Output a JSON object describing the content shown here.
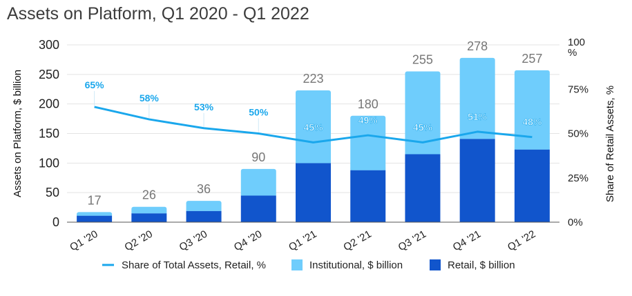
{
  "chart_data": {
    "type": "bar",
    "title": "Assets on Platform, Q1 2020 - Q1 2022",
    "categories": [
      "Q1 '20",
      "Q2 '20",
      "Q3 '20",
      "Q4 '20",
      "Q1 '21",
      "Q2 '21",
      "Q3 '21",
      "Q4 '21",
      "Q1 '22"
    ],
    "series": [
      {
        "name": "Retail, $ billion",
        "type": "stacked-bar",
        "axis": "left",
        "color": "#1155cc",
        "values": [
          11,
          15,
          19,
          45,
          100,
          88,
          115,
          141,
          123
        ]
      },
      {
        "name": "Institutional, $ billion",
        "type": "stacked-bar",
        "axis": "left",
        "color": "#6fcdfc",
        "values": [
          6,
          11,
          17,
          45,
          123,
          92,
          140,
          137,
          134
        ]
      },
      {
        "name": "Share of Total Assets, Retail, %",
        "type": "line",
        "axis": "right",
        "color": "#1aa7ec",
        "values": [
          65,
          58,
          53,
          50,
          45,
          49,
          45,
          51,
          48
        ]
      }
    ],
    "totals": [
      17,
      26,
      36,
      90,
      223,
      180,
      255,
      278,
      257
    ],
    "percent_labels": [
      "65%",
      "58%",
      "53%",
      "50%",
      "45%",
      "49%",
      "45%",
      "51%",
      "48%"
    ],
    "ylabel": "Assets on Platform, $ billion",
    "ylabel_right": "Share of Retail Assets, %",
    "ylim": [
      0,
      300
    ],
    "yticks": [
      "0",
      "50",
      "100",
      "150",
      "200",
      "250",
      "300"
    ],
    "ylim_right": [
      0,
      100
    ],
    "yticks_right": [
      "0%",
      "25%",
      "50%",
      "75%",
      "100\n%"
    ],
    "grid": true,
    "legend_position": "bottom",
    "legend": [
      "Share of Total Assets, Retail, %",
      "Institutional, $ billion",
      "Retail, $ billion"
    ]
  }
}
